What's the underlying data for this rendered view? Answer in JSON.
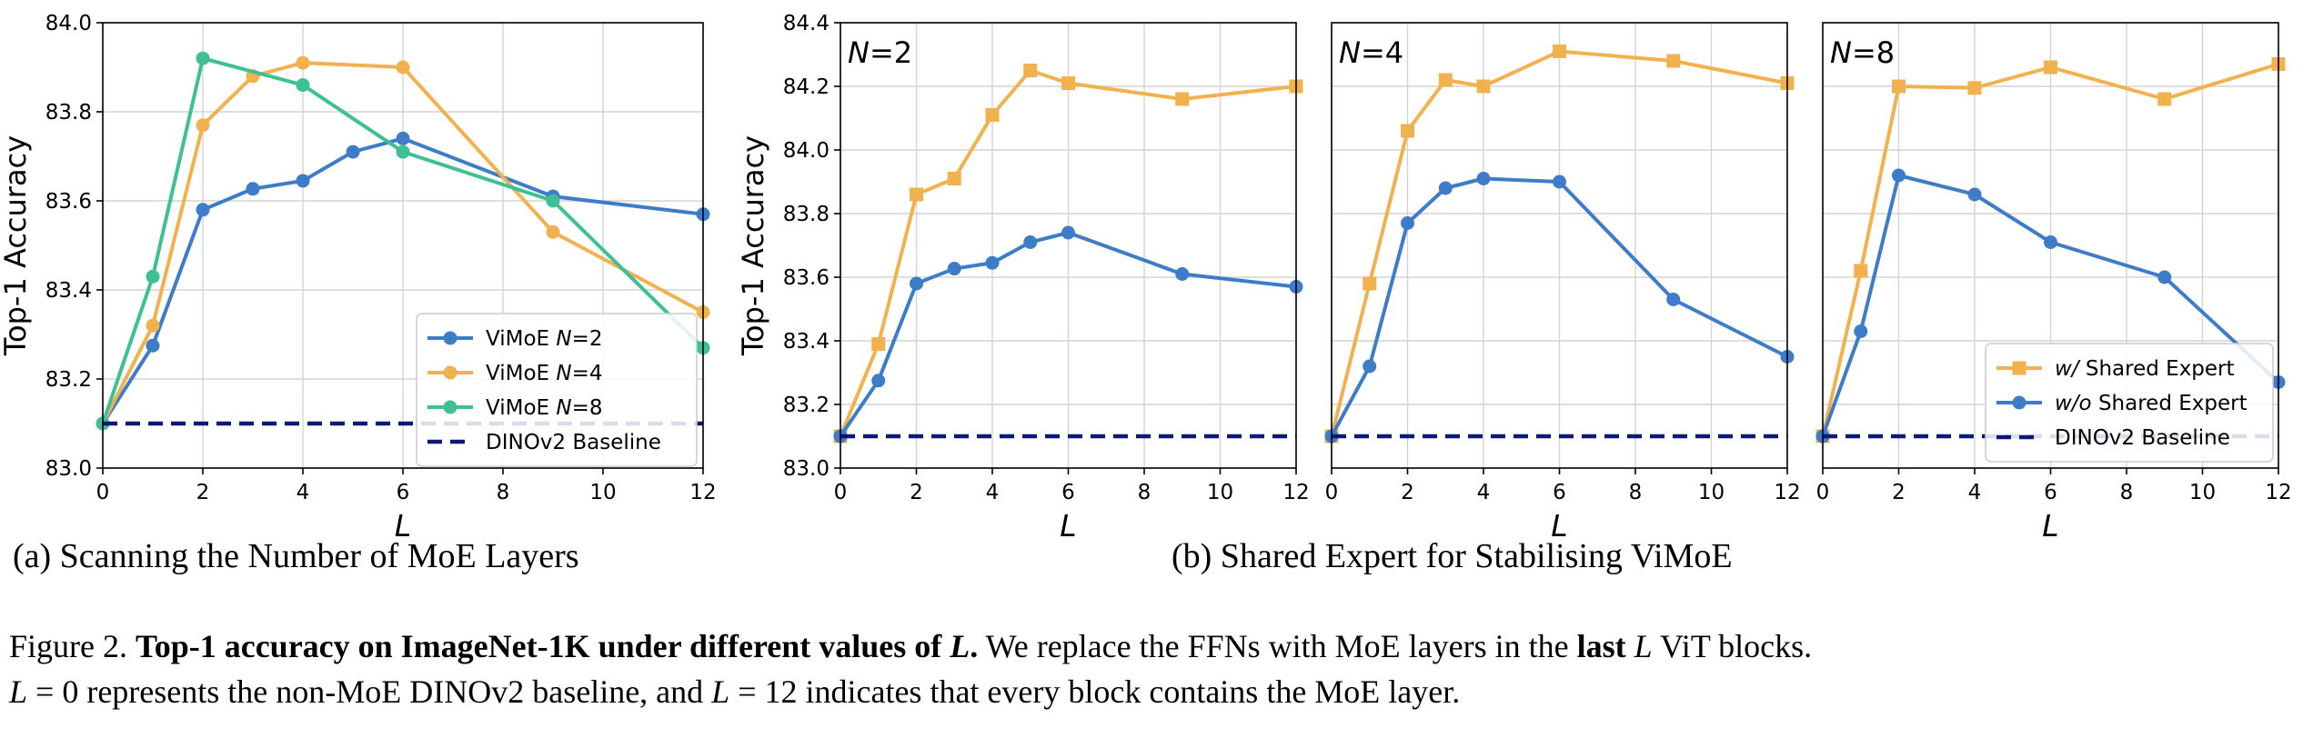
{
  "colors": {
    "blue": "#3d7cc9",
    "orange": "#f2b14f",
    "green": "#3ebf94",
    "navy": "#0b1a78"
  },
  "icons": {
    "circle_marker": "filled-circle",
    "square_marker": "filled-square"
  },
  "chart_data": [
    {
      "type": "line",
      "id": "a",
      "xlabel": "L",
      "ylabel": "Top-1 Accuracy",
      "xlim": [
        0,
        12
      ],
      "ylim": [
        83.0,
        84.0
      ],
      "xticks": [
        "0",
        "2",
        "4",
        "6",
        "8",
        "10",
        "12"
      ],
      "yticks": [
        "83.0",
        "83.2",
        "83.4",
        "83.6",
        "83.8",
        "84.0"
      ],
      "grid": true,
      "legend_position": "lower-right",
      "series": [
        {
          "name": "ViMoE N=2",
          "color": "#3d7cc9",
          "marker": "circle",
          "x": [
            0,
            1,
            2,
            3,
            4,
            5,
            6,
            9,
            12
          ],
          "y": [
            83.1,
            83.275,
            83.58,
            83.627,
            83.645,
            83.71,
            83.74,
            83.61,
            83.57
          ]
        },
        {
          "name": "ViMoE N=4",
          "color": "#f2b14f",
          "marker": "circle",
          "x": [
            0,
            1,
            2,
            3,
            4,
            6,
            9,
            12
          ],
          "y": [
            83.1,
            83.32,
            83.77,
            83.88,
            83.91,
            83.9,
            83.53,
            83.35
          ]
        },
        {
          "name": "ViMoE N=8",
          "color": "#3ebf94",
          "marker": "circle",
          "x": [
            0,
            1,
            2,
            4,
            6,
            9,
            12
          ],
          "y": [
            83.1,
            83.43,
            83.92,
            83.86,
            83.71,
            83.6,
            83.27
          ]
        },
        {
          "name": "DINOv2 Baseline",
          "color": "#0b1a78",
          "style": "dashed",
          "x": [
            0,
            12
          ],
          "y": [
            83.1,
            83.1
          ]
        }
      ]
    },
    {
      "type": "line",
      "id": "b1",
      "panel_label": "N=2",
      "xlabel": "L",
      "ylabel": "Top-1 Accuracy",
      "xlim": [
        0,
        12
      ],
      "ylim": [
        83.0,
        84.4
      ],
      "xticks": [
        "0",
        "2",
        "4",
        "6",
        "8",
        "10",
        "12"
      ],
      "yticks": [
        "83.0",
        "83.2",
        "83.4",
        "83.6",
        "83.8",
        "84.0",
        "84.2",
        "84.4"
      ],
      "grid": true,
      "series": [
        {
          "name": "w/ Shared Expert",
          "color": "#f2b14f",
          "marker": "square",
          "x": [
            0,
            1,
            2,
            3,
            4,
            5,
            6,
            9,
            12
          ],
          "y": [
            83.1,
            83.39,
            83.86,
            83.91,
            84.11,
            84.25,
            84.21,
            84.16,
            84.2
          ]
        },
        {
          "name": "w/o Shared Expert",
          "color": "#3d7cc9",
          "marker": "circle",
          "x": [
            0,
            1,
            2,
            3,
            4,
            5,
            6,
            9,
            12
          ],
          "y": [
            83.1,
            83.275,
            83.58,
            83.627,
            83.645,
            83.71,
            83.74,
            83.61,
            83.57
          ]
        },
        {
          "name": "DINOv2 Baseline",
          "color": "#0b1a78",
          "style": "dashed",
          "x": [
            0,
            12
          ],
          "y": [
            83.1,
            83.1
          ]
        }
      ]
    },
    {
      "type": "line",
      "id": "b2",
      "panel_label": "N=4",
      "xlabel": "L",
      "xlim": [
        0,
        12
      ],
      "ylim": [
        83.0,
        84.4
      ],
      "xticks": [
        "0",
        "2",
        "4",
        "6",
        "8",
        "10",
        "12"
      ],
      "grid": true,
      "series": [
        {
          "name": "w/ Shared Expert",
          "color": "#f2b14f",
          "marker": "square",
          "x": [
            0,
            1,
            2,
            3,
            4,
            6,
            9,
            12
          ],
          "y": [
            83.1,
            83.58,
            84.06,
            84.22,
            84.2,
            84.31,
            84.28,
            84.21
          ]
        },
        {
          "name": "w/o Shared Expert",
          "color": "#3d7cc9",
          "marker": "circle",
          "x": [
            0,
            1,
            2,
            3,
            4,
            6,
            9,
            12
          ],
          "y": [
            83.1,
            83.32,
            83.77,
            83.88,
            83.91,
            83.9,
            83.53,
            83.35
          ]
        },
        {
          "name": "DINOv2 Baseline",
          "color": "#0b1a78",
          "style": "dashed",
          "x": [
            0,
            12
          ],
          "y": [
            83.1,
            83.1
          ]
        }
      ]
    },
    {
      "type": "line",
      "id": "b3",
      "panel_label": "N=8",
      "xlabel": "L",
      "xlim": [
        0,
        12
      ],
      "ylim": [
        83.0,
        84.4
      ],
      "xticks": [
        "0",
        "2",
        "4",
        "6",
        "8",
        "10",
        "12"
      ],
      "grid": true,
      "legend_position": "lower-right",
      "series": [
        {
          "name": "w/ Shared Expert",
          "color": "#f2b14f",
          "marker": "square",
          "x": [
            0,
            1,
            2,
            4,
            6,
            9,
            12
          ],
          "y": [
            83.1,
            83.62,
            84.2,
            84.195,
            84.26,
            84.16,
            84.27
          ]
        },
        {
          "name": "w/o Shared Expert",
          "color": "#3d7cc9",
          "marker": "circle",
          "x": [
            0,
            1,
            2,
            4,
            6,
            9,
            12
          ],
          "y": [
            83.1,
            83.43,
            83.92,
            83.86,
            83.71,
            83.6,
            83.27
          ]
        },
        {
          "name": "DINOv2 Baseline",
          "color": "#0b1a78",
          "style": "dashed",
          "x": [
            0,
            12
          ],
          "y": [
            83.1,
            83.1
          ]
        }
      ]
    }
  ],
  "subcaptions": {
    "a": "(a)  Scanning the Number of MoE Layers",
    "b": "(b) Shared Expert for Stabilising ViMoE"
  },
  "caption": {
    "prefix": "Figure 2. ",
    "bold_1": "Top-1 accuracy on ImageNet-1K under different values of ",
    "bold_L": "L",
    "bold_end": ".",
    "text_1": " We replace the FFNs with MoE layers in the ",
    "bold_2": "last ",
    "l_2": "L",
    "text_2": " ViT blocks.",
    "l_3": "L",
    "text_3": " = 0 represents the non-MoE DINOv2 baseline, and ",
    "l_4": "L",
    "text_4": " = 12 indicates that every block contains the MoE layer."
  }
}
